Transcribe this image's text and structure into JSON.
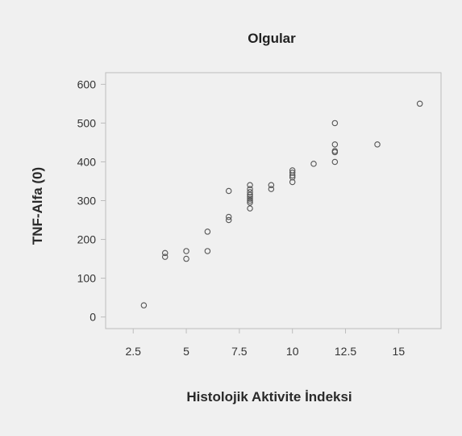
{
  "chart_data": {
    "type": "scatter",
    "title": "Olgular",
    "xlabel": "Histolojik Aktivite İndeksi",
    "ylabel": "TNF-Alfa (0)",
    "xlim": [
      1.2,
      17.0
    ],
    "ylim": [
      -30,
      630
    ],
    "xticks": [
      2.5,
      5,
      7.5,
      10,
      12.5,
      15
    ],
    "xtick_labels": [
      "2.5",
      "5",
      "7.5",
      "10",
      "12.5",
      "15"
    ],
    "yticks": [
      0,
      100,
      200,
      300,
      400,
      500,
      600
    ],
    "ytick_labels": [
      "0",
      "100",
      "200",
      "300",
      "400",
      "500",
      "600"
    ],
    "grid": false,
    "legend": "none",
    "colors": {
      "marker": "#555555",
      "frame": "#bdbdbd",
      "background": "#f0f0f0"
    },
    "points": [
      {
        "x": 3,
        "y": 30
      },
      {
        "x": 4,
        "y": 155
      },
      {
        "x": 4,
        "y": 165
      },
      {
        "x": 5,
        "y": 150
      },
      {
        "x": 5,
        "y": 170
      },
      {
        "x": 6,
        "y": 170
      },
      {
        "x": 6,
        "y": 220
      },
      {
        "x": 7,
        "y": 250
      },
      {
        "x": 7,
        "y": 258
      },
      {
        "x": 7,
        "y": 325
      },
      {
        "x": 8,
        "y": 280
      },
      {
        "x": 8,
        "y": 295
      },
      {
        "x": 8,
        "y": 300
      },
      {
        "x": 8,
        "y": 305
      },
      {
        "x": 8,
        "y": 310
      },
      {
        "x": 8,
        "y": 315
      },
      {
        "x": 8,
        "y": 322
      },
      {
        "x": 8,
        "y": 330
      },
      {
        "x": 8,
        "y": 340
      },
      {
        "x": 9,
        "y": 330
      },
      {
        "x": 9,
        "y": 340
      },
      {
        "x": 10,
        "y": 348
      },
      {
        "x": 10,
        "y": 360
      },
      {
        "x": 10,
        "y": 365
      },
      {
        "x": 10,
        "y": 372
      },
      {
        "x": 10,
        "y": 378
      },
      {
        "x": 11,
        "y": 395
      },
      {
        "x": 12,
        "y": 400
      },
      {
        "x": 12,
        "y": 425
      },
      {
        "x": 12,
        "y": 428
      },
      {
        "x": 12,
        "y": 445
      },
      {
        "x": 12,
        "y": 500
      },
      {
        "x": 14,
        "y": 445
      },
      {
        "x": 16,
        "y": 550
      }
    ]
  }
}
